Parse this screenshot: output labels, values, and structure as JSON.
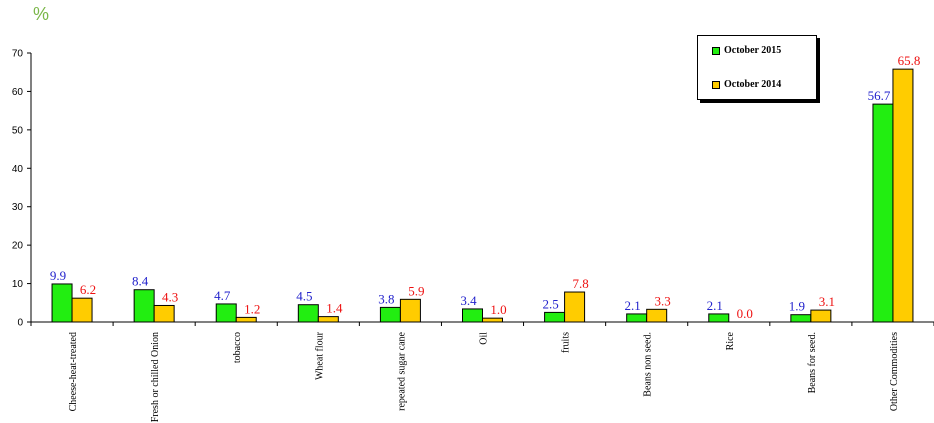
{
  "chart_data": {
    "type": "bar",
    "unit": "%",
    "categories": [
      "Cheese-heat-treated",
      "Fresh or chilled Onion",
      "tobacco",
      "Wheat flour",
      "repeated sugar cane",
      "Oil",
      "fruits",
      "Beans non seed.",
      "Rice",
      "Beans for seed.",
      "Other Commodities"
    ],
    "series": [
      {
        "name": "October 2015",
        "color": "#22ee11",
        "label_color": "#2222cc",
        "values": [
          9.9,
          8.4,
          4.7,
          4.5,
          3.8,
          3.4,
          2.5,
          2.1,
          2.1,
          1.9,
          56.7
        ],
        "labels": [
          "9.9",
          "8.4",
          "4.7",
          "4.5",
          "3.8",
          "3.4",
          "2.5",
          "2.1",
          "2.1",
          "1.9",
          "56.7"
        ]
      },
      {
        "name": "October 2014",
        "color": "#ffcc00",
        "label_color": "#ee1111",
        "values": [
          6.2,
          4.3,
          1.2,
          1.4,
          5.9,
          1.0,
          7.8,
          3.3,
          0.0,
          3.1,
          65.8
        ],
        "labels": [
          "6.2",
          "4.3",
          "1.2",
          "1.4",
          "5.9",
          "1.0",
          "7.8",
          "3.3",
          "0.0",
          "3.1",
          "65.8"
        ]
      }
    ],
    "ylim": [
      0,
      70
    ],
    "yticks": [
      "0",
      "10",
      "20",
      "30",
      "40",
      "50",
      "60",
      "70"
    ],
    "grid": false,
    "legend_position": "top-right"
  }
}
